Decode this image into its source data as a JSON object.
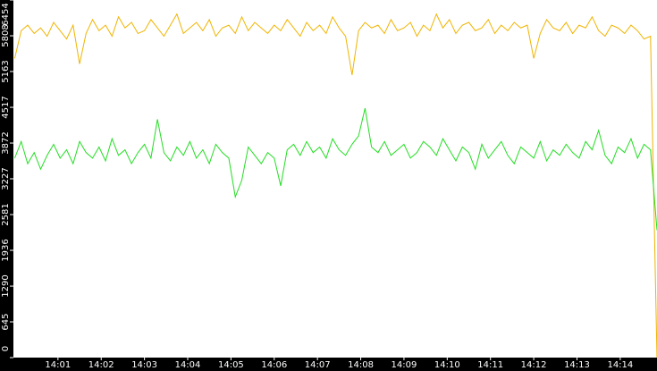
{
  "chart_data": {
    "type": "line",
    "x": [
      0.0,
      0.15,
      0.3,
      0.45,
      0.6,
      0.75,
      0.9,
      1.05,
      1.2,
      1.35,
      1.5,
      1.65,
      1.8,
      1.95,
      2.1,
      2.25,
      2.4,
      2.55,
      2.7,
      2.85,
      3.0,
      3.15,
      3.3,
      3.45,
      3.6,
      3.75,
      3.9,
      4.05,
      4.2,
      4.35,
      4.5,
      4.65,
      4.8,
      4.95,
      5.1,
      5.25,
      5.4,
      5.55,
      5.7,
      5.85,
      6.0,
      6.15,
      6.3,
      6.45,
      6.6,
      6.75,
      6.9,
      7.05,
      7.2,
      7.35,
      7.5,
      7.65,
      7.8,
      7.95,
      8.1,
      8.25,
      8.4,
      8.55,
      8.7,
      8.85,
      9.0,
      9.15,
      9.3,
      9.45,
      9.6,
      9.75,
      9.9,
      10.05,
      10.2,
      10.35,
      10.5,
      10.65,
      10.8,
      10.95,
      11.1,
      11.25,
      11.4,
      11.55,
      11.7,
      11.85,
      12.0,
      12.15,
      12.3,
      12.45,
      12.6,
      12.75,
      12.9,
      13.05,
      13.2,
      13.35,
      13.5,
      13.65,
      13.8,
      13.95,
      14.1,
      14.25,
      14.4,
      14.55,
      14.7,
      14.85
    ],
    "series": [
      {
        "color": "#f0b400",
        "values": [
          5400,
          5900,
          6000,
          5850,
          5950,
          5800,
          6050,
          5900,
          5750,
          6000,
          5300,
          5850,
          6100,
          5900,
          6000,
          5800,
          6150,
          5950,
          6050,
          5850,
          5900,
          6100,
          5950,
          5800,
          6000,
          6200,
          5850,
          5950,
          6050,
          5900,
          6100,
          5800,
          5950,
          6000,
          5850,
          6150,
          5900,
          6050,
          5950,
          5850,
          6000,
          5900,
          6100,
          5950,
          5800,
          6050,
          5900,
          6000,
          5850,
          6150,
          5950,
          5800,
          5100,
          5900,
          6050,
          5950,
          6000,
          5850,
          6100,
          5900,
          5950,
          6050,
          5800,
          6000,
          5900,
          6200,
          5950,
          6100,
          5850,
          6000,
          6050,
          5900,
          5950,
          6100,
          5850,
          6000,
          5900,
          6050,
          5950,
          6000,
          5400,
          5850,
          6100,
          5950,
          5900,
          6050,
          5850,
          6000,
          5950,
          6150,
          5900,
          5800,
          6000,
          5950,
          5850,
          6000,
          5900,
          5750,
          5800,
          0
        ]
      },
      {
        "color": "#22dd22",
        "values": [
          3600,
          3900,
          3500,
          3700,
          3400,
          3650,
          3850,
          3600,
          3750,
          3500,
          3900,
          3700,
          3600,
          3800,
          3550,
          3950,
          3650,
          3750,
          3500,
          3700,
          3850,
          3600,
          4300,
          3700,
          3550,
          3800,
          3650,
          3900,
          3600,
          3750,
          3500,
          3850,
          3700,
          3600,
          2900,
          3200,
          3800,
          3650,
          3500,
          3700,
          3600,
          3100,
          3750,
          3850,
          3650,
          3900,
          3700,
          3800,
          3600,
          3950,
          3750,
          3650,
          3850,
          4000,
          4500,
          3800,
          3700,
          3900,
          3650,
          3750,
          3850,
          3600,
          3700,
          3900,
          3800,
          3650,
          3950,
          3750,
          3550,
          3800,
          3700,
          3400,
          3850,
          3600,
          3750,
          3900,
          3650,
          3500,
          3800,
          3700,
          3600,
          3900,
          3550,
          3750,
          3650,
          3850,
          3700,
          3600,
          3900,
          3750,
          4100,
          3650,
          3500,
          3800,
          3700,
          3950,
          3600,
          3850,
          3750,
          2300
        ]
      }
    ],
    "xlim": [
      -0.03,
      14.85
    ],
    "xticks": [
      {
        "value": 1,
        "label": "14:01"
      },
      {
        "value": 2,
        "label": "14:02"
      },
      {
        "value": 3,
        "label": "14:03"
      },
      {
        "value": 4,
        "label": "14:04"
      },
      {
        "value": 5,
        "label": "14:05"
      },
      {
        "value": 6,
        "label": "14:06"
      },
      {
        "value": 7,
        "label": "14:07"
      },
      {
        "value": 8,
        "label": "14:08"
      },
      {
        "value": 9,
        "label": "14:09"
      },
      {
        "value": 10,
        "label": "14:10"
      },
      {
        "value": 11,
        "label": "14:11"
      },
      {
        "value": 12,
        "label": "14:12"
      },
      {
        "value": 13,
        "label": "14:13"
      },
      {
        "value": 14,
        "label": "14:14"
      }
    ],
    "ylim": [
      0,
      6454
    ],
    "yticks": [
      0,
      645,
      1290,
      1936,
      2581,
      3227,
      3872,
      4517,
      5163,
      5808,
      6454
    ]
  }
}
